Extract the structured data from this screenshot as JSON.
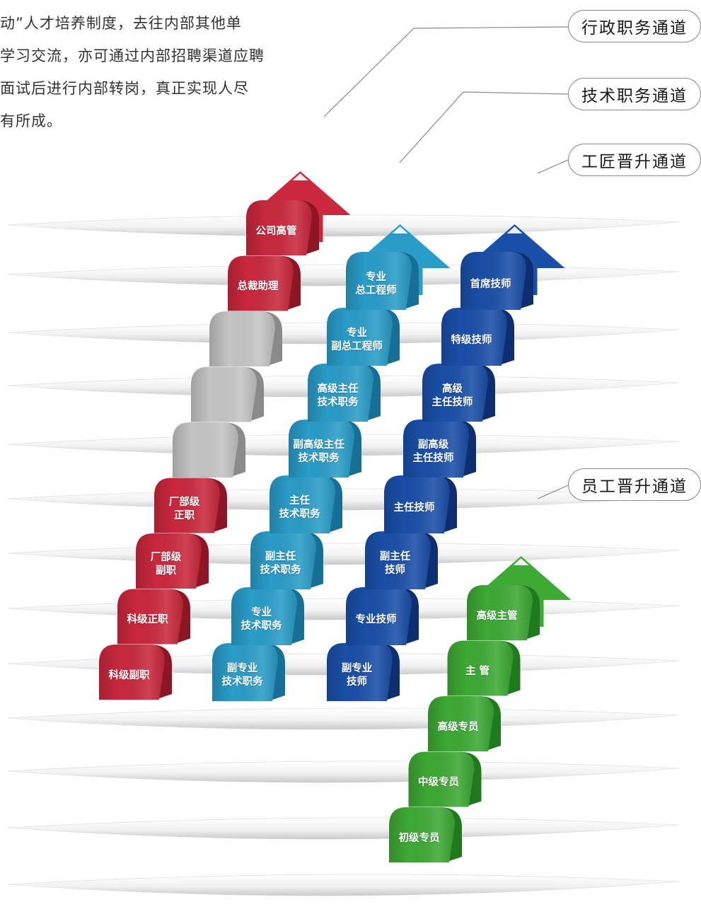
{
  "intro": {
    "lines": [
      "动”人才培养制度，去往内部其他单",
      "学习交流，亦可通过内部招聘渠道应聘",
      "面试后进行内部转岗，真正实现人尽",
      "有所成。"
    ]
  },
  "channels": [
    {
      "id": "admin",
      "title": "行政职务通道",
      "color": "#c9283d",
      "dark": "#8e1524",
      "levels": [
        "科级副职",
        "科级正职",
        "厂部级\n副职",
        "厂部级\n正职",
        "",
        "",
        "",
        "总裁助理",
        "公司高管"
      ]
    },
    {
      "id": "tech",
      "title": "技术职务通道",
      "color": "#2a9cc8",
      "dark": "#156f96",
      "levels": [
        "副专业\n技术职务",
        "专业\n技术职务",
        "副主任\n技术职务",
        "主任\n技术职务",
        "副高级主任\n技术职务",
        "高级主任\n技术职务",
        "专业\n副总工程师",
        "专业\n总工程师"
      ]
    },
    {
      "id": "craftsman",
      "title": "工匠晋升通道",
      "color": "#1a4fa8",
      "dark": "#0d2f72",
      "levels": [
        "副专业\n技师",
        "专业技师",
        "副主任\n技师",
        "主任技师",
        "副高级\n主任技师",
        "高级\n主任技师",
        "特级技师",
        "首席技师"
      ]
    },
    {
      "id": "staff",
      "title": "员工晋升通道",
      "color": "#3ea935",
      "dark": "#1f7a1e",
      "levels": [
        "初级专员",
        "中级专员",
        "高级专员",
        "主 管",
        "高级主管"
      ]
    }
  ],
  "colors": {
    "gray_step": "#c4c4c4",
    "gray_step_dark": "#8a8a8a",
    "leader_line": "#888888"
  }
}
